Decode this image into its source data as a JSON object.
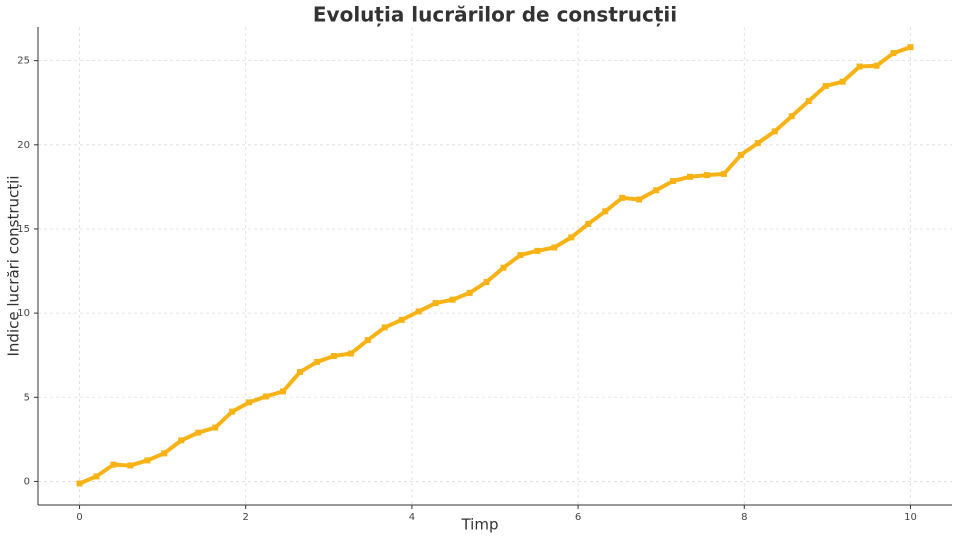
{
  "chart_data": {
    "type": "line",
    "title": "Evoluția lucrărilor de construcții",
    "xlabel": "Timp",
    "ylabel": "Indice lucrări construcții",
    "x": [
      0,
      0.204,
      0.408,
      0.612,
      0.816,
      1.02,
      1.224,
      1.429,
      1.633,
      1.837,
      2.041,
      2.245,
      2.449,
      2.653,
      2.857,
      3.061,
      3.265,
      3.469,
      3.673,
      3.878,
      4.082,
      4.286,
      4.49,
      4.694,
      4.898,
      5.102,
      5.306,
      5.51,
      5.714,
      5.918,
      6.122,
      6.327,
      6.531,
      6.735,
      6.939,
      7.143,
      7.347,
      7.551,
      7.755,
      7.959,
      8.163,
      8.367,
      8.571,
      8.776,
      8.98,
      9.184,
      9.388,
      9.592,
      9.796,
      10
    ],
    "series": [
      {
        "color": "#f7b316",
        "values": [
          -0.12,
          0.3,
          1.0,
          0.95,
          1.25,
          1.67,
          2.44,
          2.9,
          3.2,
          4.15,
          4.7,
          5.05,
          5.35,
          6.5,
          7.1,
          7.45,
          7.6,
          8.4,
          9.15,
          9.6,
          10.1,
          10.6,
          10.8,
          11.2,
          11.85,
          12.7,
          13.45,
          13.7,
          13.9,
          14.5,
          15.3,
          16.05,
          16.85,
          16.75,
          17.3,
          17.85,
          18.1,
          18.2,
          18.27,
          19.4,
          20.1,
          20.8,
          21.7,
          22.6,
          23.5,
          23.75,
          24.65,
          24.7,
          25.45,
          25.8
        ]
      }
    ],
    "xlim": [
      -0.5,
      10.5
    ],
    "xticks": [
      0,
      2,
      4,
      6,
      8,
      10
    ],
    "ylim": [
      -1.4,
      27
    ],
    "yticks": [
      0,
      5,
      10,
      15,
      20,
      25
    ],
    "grid": true
  }
}
